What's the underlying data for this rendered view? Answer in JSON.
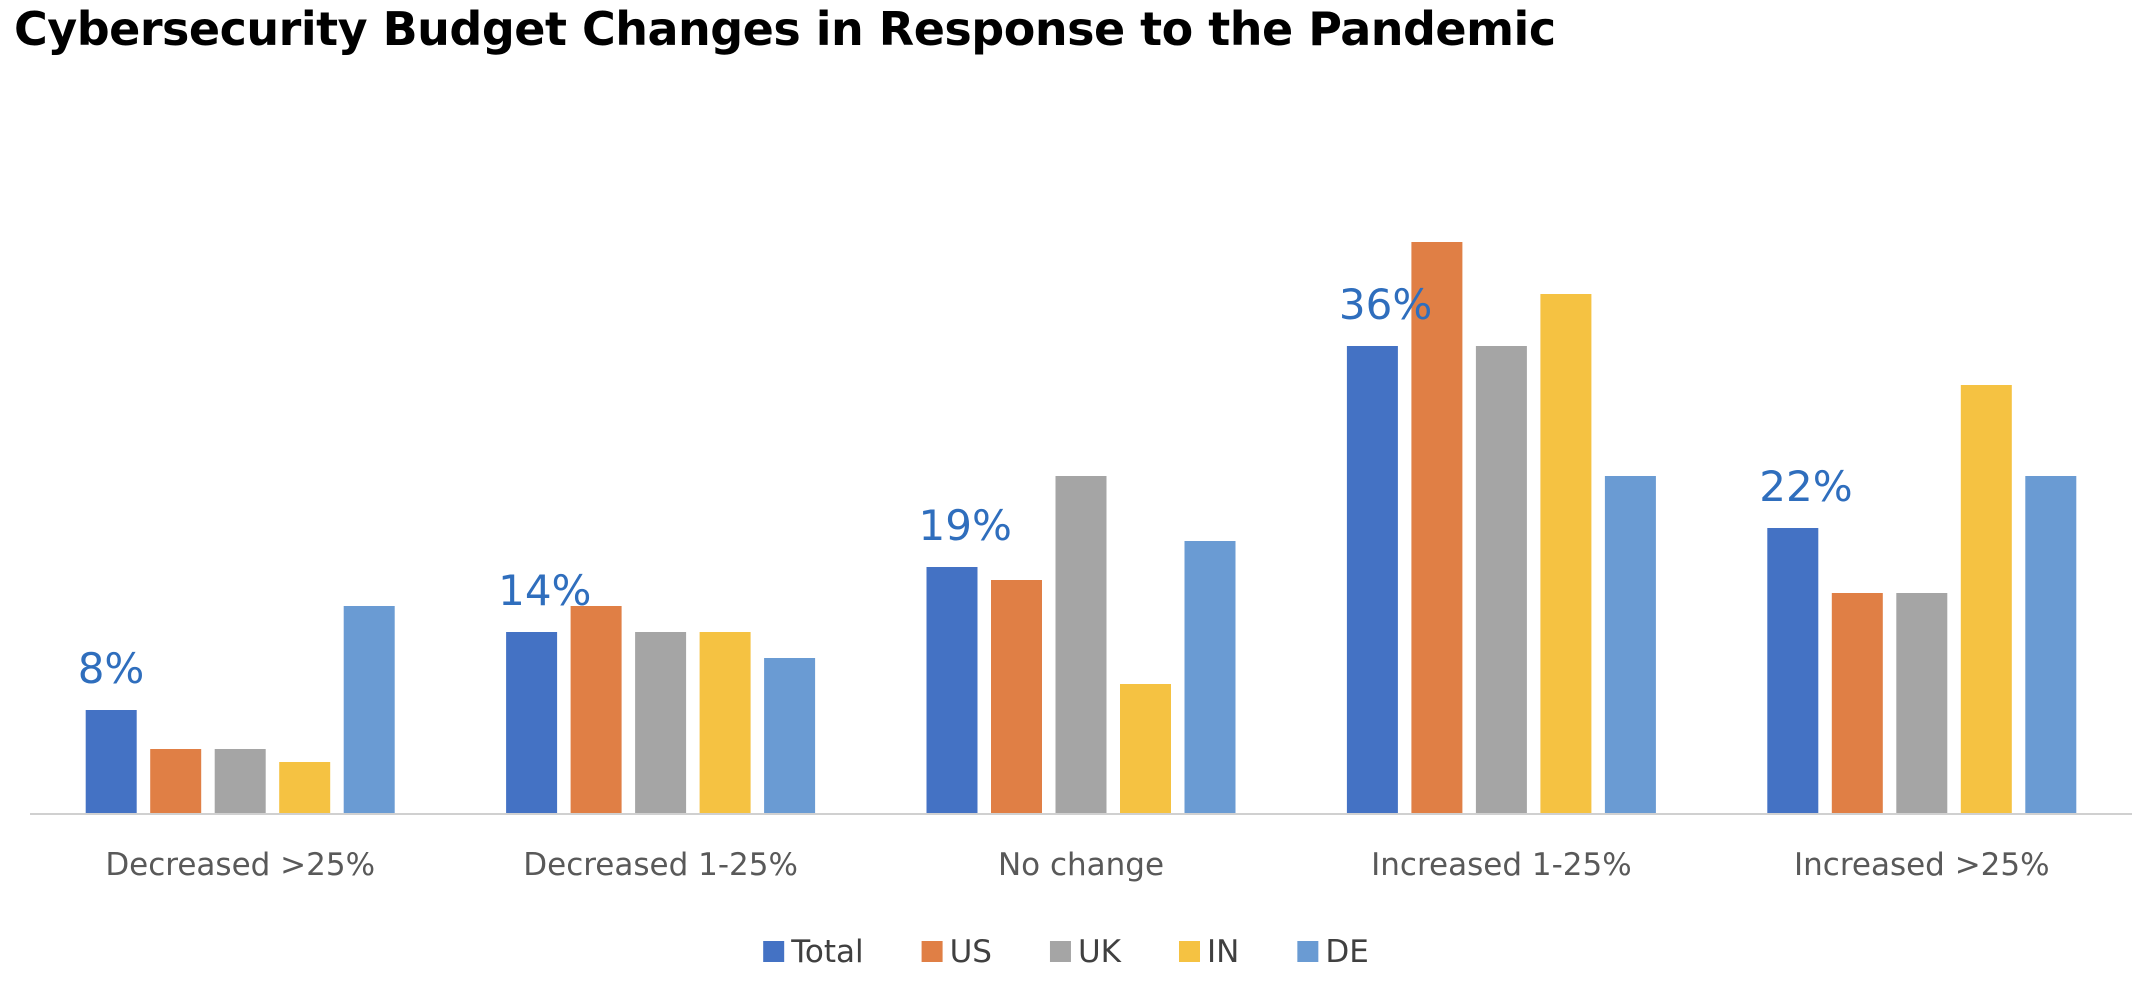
{
  "chart_data": {
    "type": "bar",
    "title": "Cybersecurity Budget Changes in Response to the Pandemic",
    "xlabel": "",
    "ylabel": "",
    "categories": [
      "Decreased >25%",
      "Decreased 1-25%",
      "No change",
      "Increased 1-25%",
      "Increased >25%"
    ],
    "series": [
      {
        "name": "Total",
        "color": "#4472c4",
        "values": [
          8,
          14,
          19,
          36,
          22
        ]
      },
      {
        "name": "US",
        "color": "#e07f45",
        "values": [
          5,
          16,
          18,
          44,
          17
        ]
      },
      {
        "name": "UK",
        "color": "#a5a5a5",
        "values": [
          5,
          14,
          26,
          36,
          17
        ]
      },
      {
        "name": "IN",
        "color": "#f5c242",
        "values": [
          4,
          14,
          10,
          40,
          33
        ]
      },
      {
        "name": "DE",
        "color": "#6a9bd3",
        "values": [
          16,
          12,
          21,
          26,
          26
        ]
      }
    ],
    "data_labels": {
      "series": "Total",
      "values": [
        "8%",
        "14%",
        "19%",
        "36%",
        "22%"
      ]
    },
    "ylim": [
      0,
      48
    ],
    "grid": false,
    "legend_position": "bottom",
    "baseline_color": "#d0d0d0"
  }
}
